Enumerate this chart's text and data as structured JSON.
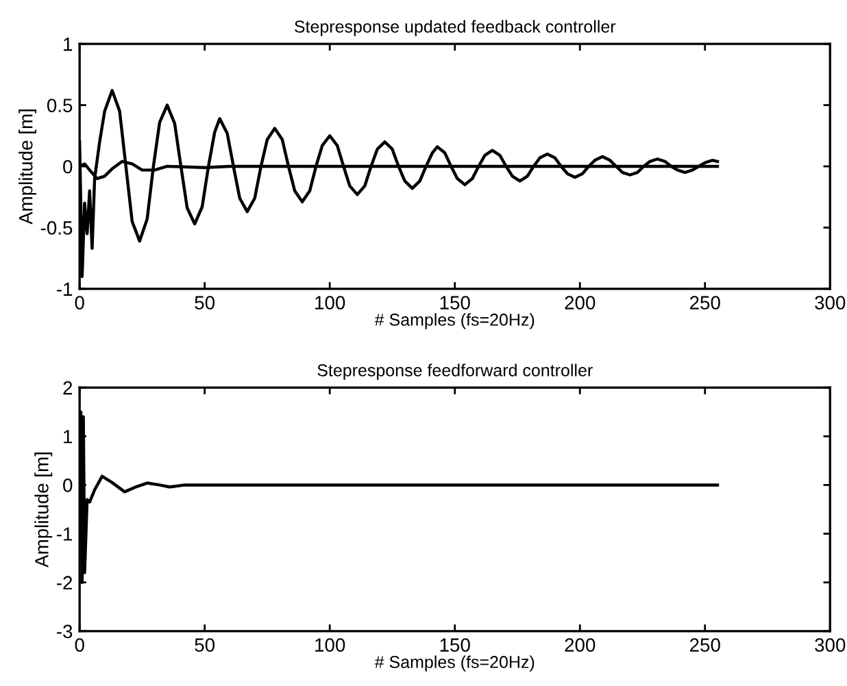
{
  "chart_data": [
    {
      "type": "line",
      "title": "Stepresponse updated feedback controller",
      "xlabel": "# Samples (fs=20Hz)",
      "ylabel": "Amplitude [m]",
      "xlim": [
        0,
        300
      ],
      "xticks": [
        0,
        50,
        100,
        150,
        200,
        250,
        300
      ],
      "ylim": [
        -1,
        1
      ],
      "yticks": [
        -1,
        -0.5,
        0,
        0.5,
        1
      ],
      "line_style": "solid",
      "marker": "none",
      "series": [
        {
          "color": "#000000",
          "x": [
            0,
            1,
            2,
            3,
            4,
            5,
            6,
            8,
            10,
            13,
            16,
            18.5,
            21,
            24,
            27,
            29.5,
            32,
            35,
            38,
            40.5,
            43,
            46,
            49,
            51.5,
            54,
            56,
            59,
            61.5,
            64,
            67,
            70,
            72.5,
            75,
            78,
            81,
            83.5,
            86,
            89,
            92,
            94.5,
            97,
            100,
            103,
            105.5,
            108,
            111,
            114,
            116.5,
            119,
            122,
            125,
            127.5,
            130,
            133,
            136,
            138.5,
            141,
            143,
            146,
            148.5,
            151,
            154,
            157,
            159.5,
            162,
            165,
            168,
            170.5,
            173,
            176,
            179,
            181.5,
            184,
            187,
            190,
            192.5,
            195,
            198,
            201,
            203.5,
            206,
            209,
            212,
            214.5,
            217,
            220,
            223,
            225.5,
            228,
            231,
            234,
            236.5,
            239,
            242,
            245,
            247.5,
            250,
            253,
            255
          ],
          "values": [
            0.2,
            -0.9,
            -0.3,
            -0.55,
            -0.2,
            -0.67,
            -0.1,
            0.2,
            0.45,
            0.62,
            0.45,
            0,
            -0.45,
            -0.61,
            -0.43,
            0,
            0.36,
            0.5,
            0.35,
            0,
            -0.34,
            -0.47,
            -0.33,
            0,
            0.28,
            0.39,
            0.27,
            0,
            -0.26,
            -0.37,
            -0.26,
            0,
            0.22,
            0.31,
            0.22,
            0,
            -0.2,
            -0.29,
            -0.2,
            0,
            0.17,
            0.25,
            0.17,
            0,
            -0.16,
            -0.23,
            -0.16,
            0,
            0.14,
            0.2,
            0.14,
            0,
            -0.12,
            -0.18,
            -0.12,
            0,
            0.11,
            0.16,
            0.11,
            0,
            -0.1,
            -0.15,
            -0.1,
            0,
            0.09,
            0.13,
            0.09,
            0,
            -0.08,
            -0.12,
            -0.08,
            0,
            0.07,
            0.1,
            0.07,
            0,
            -0.06,
            -0.09,
            -0.06,
            0,
            0.05,
            0.08,
            0.05,
            0,
            -0.05,
            -0.07,
            -0.05,
            0,
            0.04,
            0.06,
            0.04,
            0,
            -0.03,
            -0.05,
            -0.03,
            0,
            0.03,
            0.05,
            0.04
          ]
        },
        {
          "color": "#000000",
          "x": [
            0,
            2,
            4,
            7,
            10,
            13,
            17,
            21,
            25,
            30,
            35,
            50,
            60,
            80,
            255
          ],
          "values": [
            0,
            0.02,
            -0.03,
            -0.1,
            -0.08,
            -0.02,
            0.04,
            0.02,
            -0.03,
            -0.03,
            0,
            -0.01,
            0,
            0,
            0
          ]
        }
      ]
    },
    {
      "type": "line",
      "title": "Stepresponse feedforward controller",
      "xlabel": "# Samples (fs=20Hz)",
      "ylabel": "Amplitude [m]",
      "xlim": [
        0,
        300
      ],
      "xticks": [
        0,
        50,
        100,
        150,
        200,
        250,
        300
      ],
      "ylim": [
        -3,
        2
      ],
      "yticks": [
        -3,
        -2,
        -1,
        0,
        1,
        2
      ],
      "line_style": "solid",
      "marker": "none",
      "series": [
        {
          "color": "#000000",
          "x": [
            0,
            0.5,
            1,
            1.5,
            2,
            3,
            4,
            6,
            9,
            13,
            18,
            22,
            27,
            32,
            36,
            42,
            60,
            255
          ],
          "values": [
            0,
            1.5,
            -2,
            1.4,
            -1.8,
            -0.3,
            -0.35,
            -0.1,
            0.18,
            0.05,
            -0.14,
            -0.05,
            0.04,
            0,
            -0.04,
            0,
            0,
            0
          ]
        }
      ]
    }
  ]
}
